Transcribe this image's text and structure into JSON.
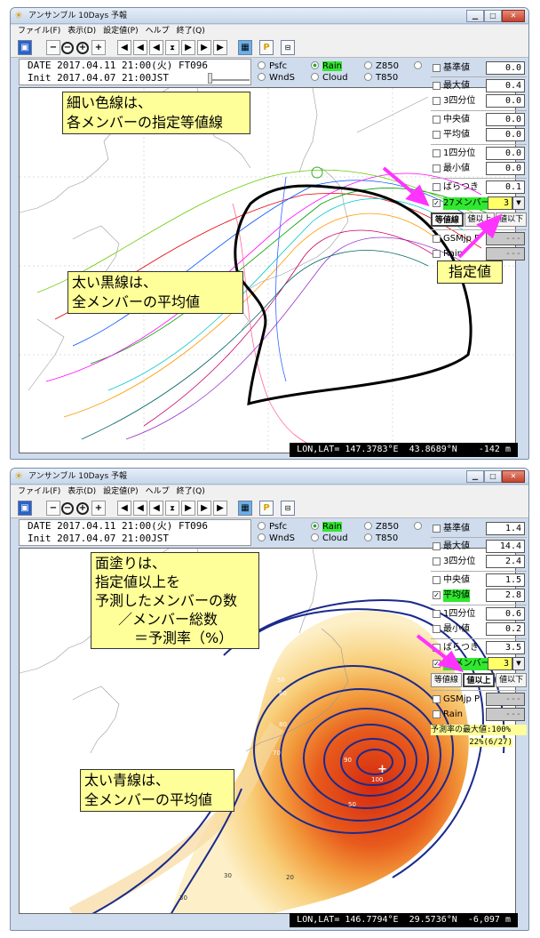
{
  "windows": [
    {
      "title": "アンサンブル 10Days 予報",
      "menu": [
        "ファイル(F)",
        "表示(D)",
        "設定値(P)",
        "ヘルプ",
        "終了(Q)"
      ],
      "date_line": "DATE 2017.04.11 21:00(火) FT096",
      "init_line": "Init 2017.04.07 21:00JST",
      "radios": {
        "psfc": "Psfc",
        "rain": "Rain",
        "z850": "Z850",
        "wnds": "WndS",
        "cloud": "Cloud",
        "t850": "T850"
      },
      "panel": {
        "kijun": {
          "label": "基準値",
          "value": "0.0"
        },
        "max": {
          "label": "最大値",
          "value": "0.4"
        },
        "q3": {
          "label": "3四分位",
          "value": "0.0"
        },
        "median": {
          "label": "中央値",
          "value": "0.0"
        },
        "mean": {
          "label": "平均値",
          "value": "0.0"
        },
        "q1": {
          "label": "1四分位",
          "value": "0.0"
        },
        "min": {
          "label": "最小値",
          "value": "0.0"
        },
        "spread": {
          "label": "ばらつき",
          "value": "0.1"
        },
        "members": {
          "label": "27メンバー",
          "value": "3"
        },
        "buttons": [
          "等値線",
          "値以上",
          "値以下"
        ],
        "gsm": {
          "label": "GSMjp P",
          "value": "---"
        },
        "rain": {
          "label": "Rain",
          "value": "---"
        }
      },
      "status": "LON,LAT= 147.3783°E  43.8689°N    -142 m",
      "notes": {
        "n1": [
          "細い色線は、",
          "各メンバーの指定等値線"
        ],
        "n2": [
          "太い黒線は、",
          "全メンバーの平均値"
        ],
        "n3": [
          "指定値"
        ]
      }
    },
    {
      "title": "アンサンブル 10Days 予報",
      "menu": [
        "ファイル(F)",
        "表示(D)",
        "設定値(P)",
        "ヘルプ",
        "終了(Q)"
      ],
      "date_line": "DATE 2017.04.11 21:00(火) FT096",
      "init_line": "Init 2017.04.07 21:00JST",
      "radios": {
        "psfc": "Psfc",
        "rain": "Rain",
        "z850": "Z850",
        "wnds": "WndS",
        "cloud": "Cloud",
        "t850": "T850"
      },
      "panel": {
        "kijun": {
          "label": "基準値",
          "value": "1.4"
        },
        "max": {
          "label": "最大値",
          "value": "14.4"
        },
        "q3": {
          "label": "3四分位",
          "value": "2.4"
        },
        "median": {
          "label": "中央値",
          "value": "1.5"
        },
        "mean": {
          "label": "平均値",
          "value": "2.8"
        },
        "q1": {
          "label": "1四分位",
          "value": "0.6"
        },
        "min": {
          "label": "最小値",
          "value": "0.2"
        },
        "spread": {
          "label": "ばらつき",
          "value": "3.5"
        },
        "members": {
          "label": "27メンバー",
          "value": "3"
        },
        "buttons": [
          "等値線",
          "値以上",
          "値以下"
        ],
        "gsm": {
          "label": "GSMjp P",
          "value": "---"
        },
        "rain": {
          "label": "Rain",
          "value": "---"
        },
        "max_rate": "予測率の最大値:100%",
        "rate_here": "22%(6/27)"
      },
      "status": "LON,LAT= 146.7794°E  29.5736°N  -6,097 m",
      "notes": {
        "n1": [
          "面塗りは、",
          "指定値以上を",
          "予測したメンバーの数",
          "／メンバー総数",
          "＝予測率（%）"
        ],
        "n2": [
          "太い青線は、",
          "全メンバーの平均値"
        ]
      },
      "contour_labels": [
        "50",
        "60",
        "80",
        "70",
        "90",
        "100",
        "50",
        "30",
        "20",
        "30"
      ]
    }
  ],
  "colors": {
    "highlight": "#33e633",
    "note_bg": "#ffff99",
    "arrow": "#ff33ff"
  }
}
